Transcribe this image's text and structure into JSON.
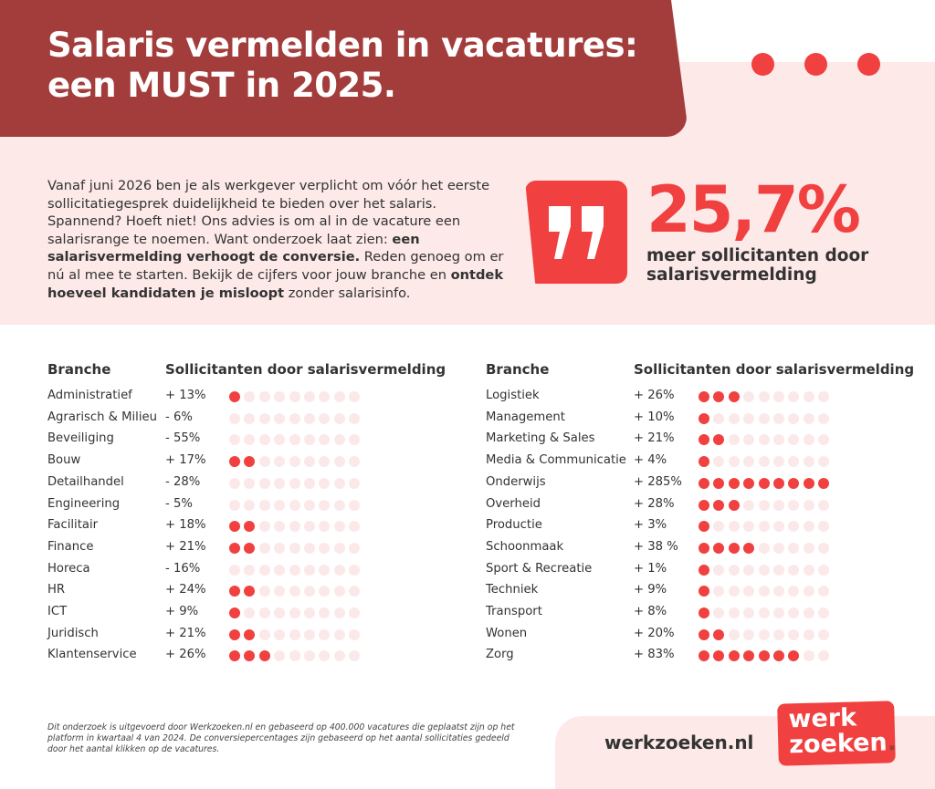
{
  "header": {
    "title_line1": "Salaris vermelden in vacatures:",
    "title_line2": "een MUST in 2025."
  },
  "intro": [
    {
      "t": "Vanaf juni 2026 ben je als werkgever verplicht om vóór het eerste sollicitatiegesprek duidelijkheid te bieden over het salaris. Spannend? Hoeft niet! Ons advies is om al in de vacature een salarisrange te noemen. Want onderzoek laat zien: ",
      "b": false
    },
    {
      "t": "een salarisvermelding verhoogt de conversie.",
      "b": true
    },
    {
      "t": " Reden genoeg om er nú al mee te starten. Bekijk de cijfers voor jouw branche en ",
      "b": false
    },
    {
      "t": "ontdek hoeveel kandidaten je misloopt",
      "b": true
    },
    {
      "t": " zonder salarisinfo.",
      "b": false
    }
  ],
  "highlight": {
    "icon": "quote-icon",
    "value": "25,7%",
    "caption_line1": "meer sollicitanten door",
    "caption_line2": "salarisvermelding"
  },
  "colors": {
    "accent": "#f0403f",
    "header": "#a33d3b",
    "pink": "#fce9e8",
    "dot_empty": "#fbe9e9"
  },
  "chart_data": {
    "type": "table",
    "dot_scale_max": 9,
    "columns": [
      "Branche",
      "Sollicitanten door salarisvermelding"
    ],
    "left": [
      {
        "branche": "Administratief",
        "value": "+ 13%",
        "dots": 1
      },
      {
        "branche": "Agrarisch & Milieu",
        "value": "- 6%",
        "dots": 0
      },
      {
        "branche": "Beveiliging",
        "value": "- 55%",
        "dots": 0
      },
      {
        "branche": "Bouw",
        "value": "+ 17%",
        "dots": 2
      },
      {
        "branche": "Detailhandel",
        "value": "- 28%",
        "dots": 0
      },
      {
        "branche": "Engineering",
        "value": "- 5%",
        "dots": 0
      },
      {
        "branche": "Facilitair",
        "value": "+ 18%",
        "dots": 2
      },
      {
        "branche": "Finance",
        "value": "+ 21%",
        "dots": 2
      },
      {
        "branche": "Horeca",
        "value": "- 16%",
        "dots": 0
      },
      {
        "branche": "HR",
        "value": "+ 24%",
        "dots": 2
      },
      {
        "branche": "ICT",
        "value": "+ 9%",
        "dots": 1
      },
      {
        "branche": "Juridisch",
        "value": "+ 21%",
        "dots": 2
      },
      {
        "branche": "Klantenservice",
        "value": "+ 26%",
        "dots": 3
      }
    ],
    "right": [
      {
        "branche": "Logistiek",
        "value": "+ 26%",
        "dots": 3
      },
      {
        "branche": "Management",
        "value": "+ 10%",
        "dots": 1
      },
      {
        "branche": "Marketing & Sales",
        "value": "+ 21%",
        "dots": 2
      },
      {
        "branche": "Media & Communicatie",
        "value": "+ 4%",
        "dots": 1
      },
      {
        "branche": "Onderwijs",
        "value": "+ 285%",
        "dots": 9
      },
      {
        "branche": "Overheid",
        "value": "+ 28%",
        "dots": 3
      },
      {
        "branche": "Productie",
        "value": "+ 3%",
        "dots": 1
      },
      {
        "branche": "Schoonmaak",
        "value": "+ 38 %",
        "dots": 4
      },
      {
        "branche": "Sport & Recreatie",
        "value": "+ 1%",
        "dots": 1
      },
      {
        "branche": "Techniek",
        "value": "+ 9%",
        "dots": 1
      },
      {
        "branche": "Transport",
        "value": "+ 8%",
        "dots": 1
      },
      {
        "branche": "Wonen",
        "value": "+ 20%",
        "dots": 2
      },
      {
        "branche": "Zorg",
        "value": "+ 83%",
        "dots": 7
      }
    ]
  },
  "footer": {
    "note": "Dit onderzoek is uitgevoerd door Werkzoeken.nl en gebaseerd op 400.000 vacatures die geplaatst zijn op het platform in kwartaal 4 van 2024. De conversiepercentages zijn gebaseerd op het aantal sollicitaties gedeeld door het aantal klikken op de vacatures.",
    "site": "werkzoeken.nl",
    "logo_line1": "werk",
    "logo_line2": "zoeken",
    "logo_dot": "."
  }
}
